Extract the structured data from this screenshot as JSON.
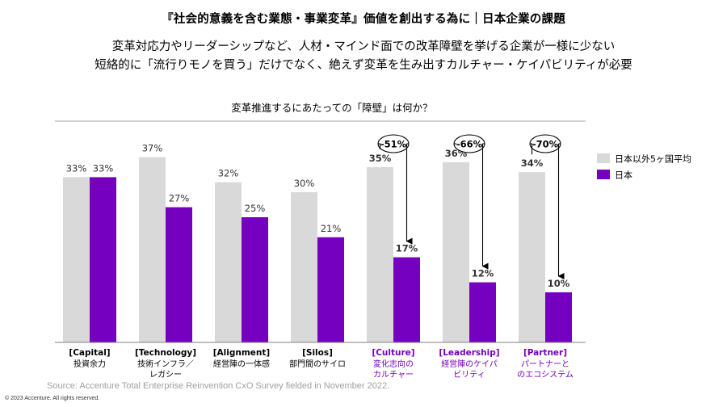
{
  "header": {
    "title": "『社会的意義を含む業態・事業変革』価値を創出する為に｜日本企業の課題",
    "subtitle_line1": "変革対応力やリーダーシップなど、人材・マインド面での改革障壁を挙げる企業が一様に少ない",
    "subtitle_line2": "短絡的に「流行りモノを買う」だけでなく、絶えず変革を生み出すカルチャー・ケイパビリティが必要"
  },
  "chart_data": {
    "type": "bar",
    "title": "変革推進するにあたっての「障壁」は何か？",
    "categories": [
      {
        "line1": "[Capital]",
        "line2": "投資余力",
        "line3": "",
        "highlight": false
      },
      {
        "line1": "[Technology]",
        "line2": "技術インフラ／",
        "line3": "レガシー",
        "highlight": false
      },
      {
        "line1": "[Alignment]",
        "line2": "経営陣の一体感",
        "line3": "",
        "highlight": false
      },
      {
        "line1": "[Silos]",
        "line2": "部門間のサイロ",
        "line3": "",
        "highlight": false
      },
      {
        "line1": "[Culture]",
        "line2": "変化志向の",
        "line3": "カルチャー",
        "highlight": true
      },
      {
        "line1": "[Leadership]",
        "line2": "経営陣のケイパ",
        "line3": "ビリティ",
        "highlight": true
      },
      {
        "line1": "[Partner]",
        "line2": "パートナーと",
        "line3": "のエコシステム",
        "highlight": true
      }
    ],
    "series": [
      {
        "name": "日本以外5ヶ国平均",
        "color": "#d9d9d9",
        "values": [
          33,
          37,
          32,
          30,
          35,
          36,
          34
        ],
        "labels": [
          "33%",
          "37%",
          "32%",
          "30%",
          "35%",
          "36%",
          "34%"
        ]
      },
      {
        "name": "日本",
        "color": "#7500c0",
        "values": [
          33,
          27,
          25,
          21,
          17,
          12,
          10
        ],
        "labels": [
          "33%",
          "27%",
          "25%",
          "21%",
          "17%",
          "12%",
          "10%"
        ]
      }
    ],
    "bold_label_indices": [
      4,
      5,
      6
    ],
    "differences": [
      {
        "index": 4,
        "label": "-51%"
      },
      {
        "index": 5,
        "label": "-66%"
      },
      {
        "index": 6,
        "label": "-70%"
      }
    ],
    "ylim": [
      0,
      42
    ],
    "highlight_color": "#7500c0",
    "legend_position": "right"
  },
  "footer": {
    "source": "Source: Accenture Total Enterprise Reinvention CxO Survey fielded in November 2022.",
    "copyright": "© 2023 Accenture. All rights reserved."
  }
}
